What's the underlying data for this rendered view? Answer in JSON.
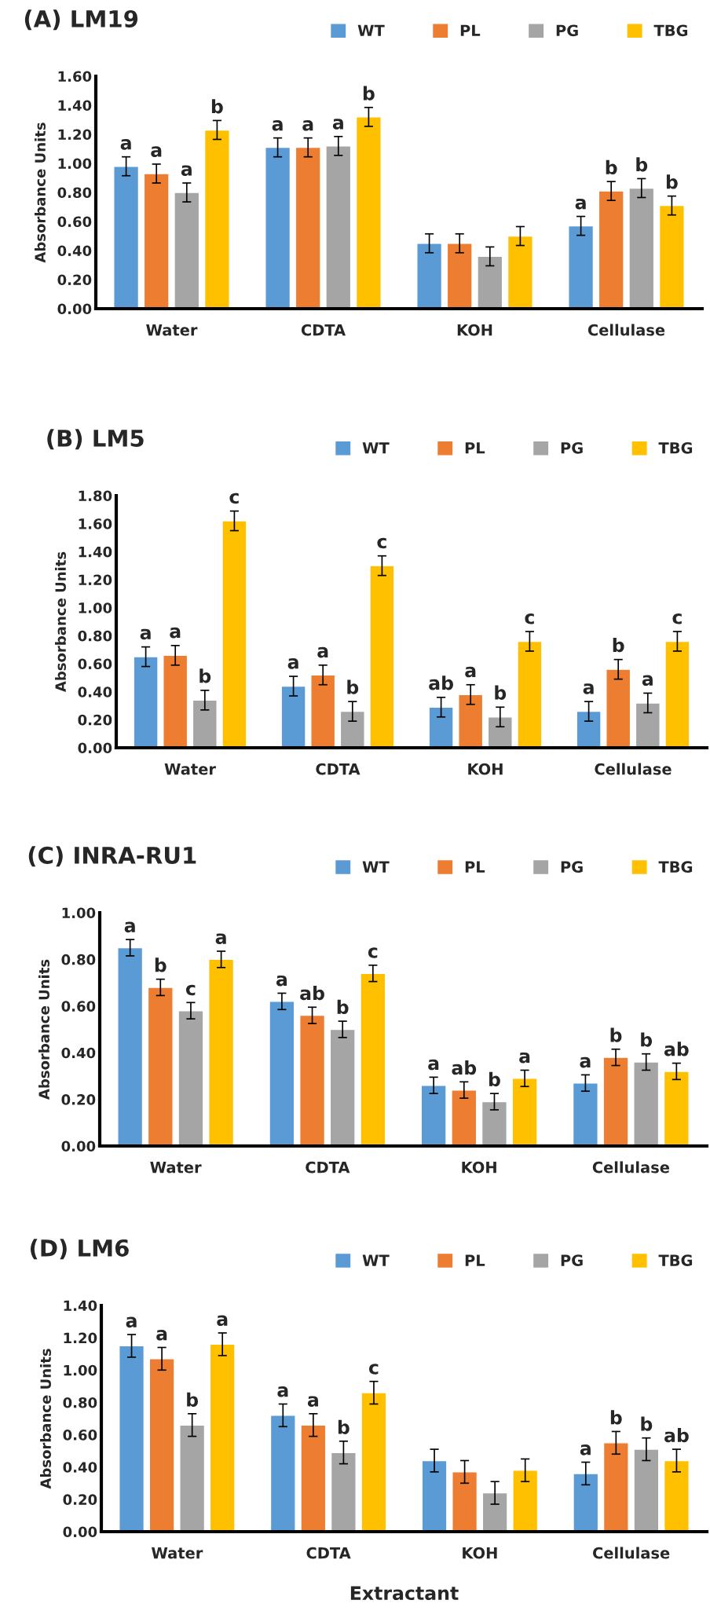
{
  "chart_data": [
    {
      "type": "bar",
      "title": "(A) LM19",
      "ylabel": "Absorbance Units",
      "categories": [
        "Water",
        "CDTA",
        "KOH",
        "Cellulase"
      ],
      "ylim": [
        0,
        1.6
      ],
      "yticks": [
        {
          "value": 0,
          "label": "0.00"
        },
        {
          "value": 0.2,
          "label": "0.20"
        },
        {
          "value": 0.4,
          "label": "0.40"
        },
        {
          "value": 0.6,
          "label": "0.60"
        },
        {
          "value": 0.8,
          "label": "0.80"
        },
        {
          "value": 1.0,
          "label": "1.00"
        },
        {
          "value": 1.2,
          "label": "1.20"
        },
        {
          "value": 1.4,
          "label": "1.40"
        },
        {
          "value": 1.6,
          "label": "1.60"
        }
      ],
      "grid": false,
      "legend": "top right",
      "series": [
        {
          "name": "WT",
          "color": "#5b9bd5",
          "values": [
            0.98,
            1.11,
            0.45,
            0.57
          ],
          "errors": [
            0.065,
            0.065,
            0.065,
            0.065
          ],
          "value_labels": [
            "a",
            "a",
            null,
            "a"
          ]
        },
        {
          "name": "PL",
          "color": "#ed7d31",
          "values": [
            0.93,
            1.11,
            0.45,
            0.81
          ],
          "errors": [
            0.065,
            0.065,
            0.065,
            0.065
          ],
          "value_labels": [
            "a",
            "a",
            null,
            "b"
          ]
        },
        {
          "name": "PG",
          "color": "#a5a5a5",
          "values": [
            0.8,
            1.12,
            0.36,
            0.83
          ],
          "errors": [
            0.065,
            0.065,
            0.065,
            0.065
          ],
          "value_labels": [
            "a",
            "a",
            null,
            "b"
          ]
        },
        {
          "name": "TBG",
          "color": "#ffc000",
          "values": [
            1.23,
            1.32,
            0.5,
            0.71
          ],
          "errors": [
            0.065,
            0.065,
            0.065,
            0.065
          ],
          "value_labels": [
            "b",
            "b",
            null,
            "b"
          ]
        }
      ]
    },
    {
      "type": "bar",
      "title": "(B) LM5",
      "ylabel": "Absorbance Units",
      "categories": [
        "Water",
        "CDTA",
        "KOH",
        "Cellulase"
      ],
      "ylim": [
        0,
        1.8
      ],
      "yticks": [
        {
          "value": 0,
          "label": "0.00"
        },
        {
          "value": 0.2,
          "label": "0.20"
        },
        {
          "value": 0.4,
          "label": "0.40"
        },
        {
          "value": 0.6,
          "label": "0.60"
        },
        {
          "value": 0.8,
          "label": "0.80"
        },
        {
          "value": 1.0,
          "label": "1.00"
        },
        {
          "value": 1.2,
          "label": "1.20"
        },
        {
          "value": 1.4,
          "label": "1.40"
        },
        {
          "value": 1.6,
          "label": "1.60"
        },
        {
          "value": 1.8,
          "label": "1.80"
        }
      ],
      "grid": false,
      "legend": "top right",
      "series": [
        {
          "name": "WT",
          "color": "#5b9bd5",
          "values": [
            0.65,
            0.44,
            0.29,
            0.26
          ],
          "errors": [
            0.07,
            0.07,
            0.07,
            0.07
          ],
          "value_labels": [
            "a",
            "a",
            "ab",
            "a"
          ]
        },
        {
          "name": "PL",
          "color": "#ed7d31",
          "values": [
            0.66,
            0.52,
            0.38,
            0.56
          ],
          "errors": [
            0.07,
            0.07,
            0.07,
            0.07
          ],
          "value_labels": [
            "a",
            "a",
            "a",
            "b"
          ]
        },
        {
          "name": "PG",
          "color": "#a5a5a5",
          "values": [
            0.34,
            0.26,
            0.22,
            0.32
          ],
          "errors": [
            0.07,
            0.07,
            0.07,
            0.07
          ],
          "value_labels": [
            "b",
            "b",
            "b",
            "a"
          ]
        },
        {
          "name": "TBG",
          "color": "#ffc000",
          "values": [
            1.62,
            1.3,
            0.76,
            0.76
          ],
          "errors": [
            0.07,
            0.07,
            0.07,
            0.07
          ],
          "value_labels": [
            "c",
            "c",
            "c",
            "c"
          ]
        }
      ]
    },
    {
      "type": "bar",
      "title": "(C) INRA-RU1",
      "ylabel": "Absorbance Units",
      "categories": [
        "Water",
        "CDTA",
        "KOH",
        "Cellulase"
      ],
      "ylim": [
        0,
        1.0
      ],
      "yticks": [
        {
          "value": 0,
          "label": "0.00"
        },
        {
          "value": 0.2,
          "label": "0.20"
        },
        {
          "value": 0.4,
          "label": "0.40"
        },
        {
          "value": 0.6,
          "label": "0.60"
        },
        {
          "value": 0.8,
          "label": "0.80"
        },
        {
          "value": 1.0,
          "label": "1.00"
        }
      ],
      "grid": false,
      "legend": "top right",
      "series": [
        {
          "name": "WT",
          "color": "#5b9bd5",
          "values": [
            0.85,
            0.62,
            0.26,
            0.27
          ],
          "errors": [
            0.035,
            0.035,
            0.035,
            0.035
          ],
          "value_labels": [
            "a",
            "a",
            "a",
            "a"
          ]
        },
        {
          "name": "PL",
          "color": "#ed7d31",
          "values": [
            0.68,
            0.56,
            0.24,
            0.38
          ],
          "errors": [
            0.035,
            0.035,
            0.035,
            0.035
          ],
          "value_labels": [
            "b",
            "ab",
            "ab",
            "b"
          ]
        },
        {
          "name": "PG",
          "color": "#a5a5a5",
          "values": [
            0.58,
            0.5,
            0.19,
            0.36
          ],
          "errors": [
            0.035,
            0.035,
            0.035,
            0.035
          ],
          "value_labels": [
            "c",
            "b",
            "b",
            "b"
          ]
        },
        {
          "name": "TBG",
          "color": "#ffc000",
          "values": [
            0.8,
            0.74,
            0.29,
            0.32
          ],
          "errors": [
            0.035,
            0.035,
            0.035,
            0.035
          ],
          "value_labels": [
            "a",
            "c",
            "a",
            "ab"
          ]
        }
      ]
    },
    {
      "type": "bar",
      "title": "(D) LM6",
      "ylabel": "Absorbance Units",
      "xlabel": "Extractant",
      "categories": [
        "Water",
        "CDTA",
        "KOH",
        "Cellulase"
      ],
      "ylim": [
        0,
        1.4
      ],
      "yticks": [
        {
          "value": 0,
          "label": "0.00"
        },
        {
          "value": 0.2,
          "label": "0.20"
        },
        {
          "value": 0.4,
          "label": "0.40"
        },
        {
          "value": 0.6,
          "label": "0.60"
        },
        {
          "value": 0.8,
          "label": "0.80"
        },
        {
          "value": 1.0,
          "label": "1.00"
        },
        {
          "value": 1.2,
          "label": "1.20"
        },
        {
          "value": 1.4,
          "label": "1.40"
        }
      ],
      "grid": false,
      "legend": "top right",
      "series": [
        {
          "name": "WT",
          "color": "#5b9bd5",
          "values": [
            1.15,
            0.72,
            0.44,
            0.36
          ],
          "errors": [
            0.07,
            0.07,
            0.07,
            0.07
          ],
          "value_labels": [
            "a",
            "a",
            null,
            "a"
          ]
        },
        {
          "name": "PL",
          "color": "#ed7d31",
          "values": [
            1.07,
            0.66,
            0.37,
            0.55
          ],
          "errors": [
            0.07,
            0.07,
            0.07,
            0.07
          ],
          "value_labels": [
            "a",
            "a",
            null,
            "b"
          ]
        },
        {
          "name": "PG",
          "color": "#a5a5a5",
          "values": [
            0.66,
            0.49,
            0.24,
            0.51
          ],
          "errors": [
            0.07,
            0.07,
            0.07,
            0.07
          ],
          "value_labels": [
            "b",
            "b",
            null,
            "b"
          ]
        },
        {
          "name": "TBG",
          "color": "#ffc000",
          "values": [
            1.16,
            0.86,
            0.38,
            0.44
          ],
          "errors": [
            0.07,
            0.07,
            0.07,
            0.07
          ],
          "value_labels": [
            "a",
            "c",
            null,
            "ab"
          ]
        }
      ]
    }
  ]
}
